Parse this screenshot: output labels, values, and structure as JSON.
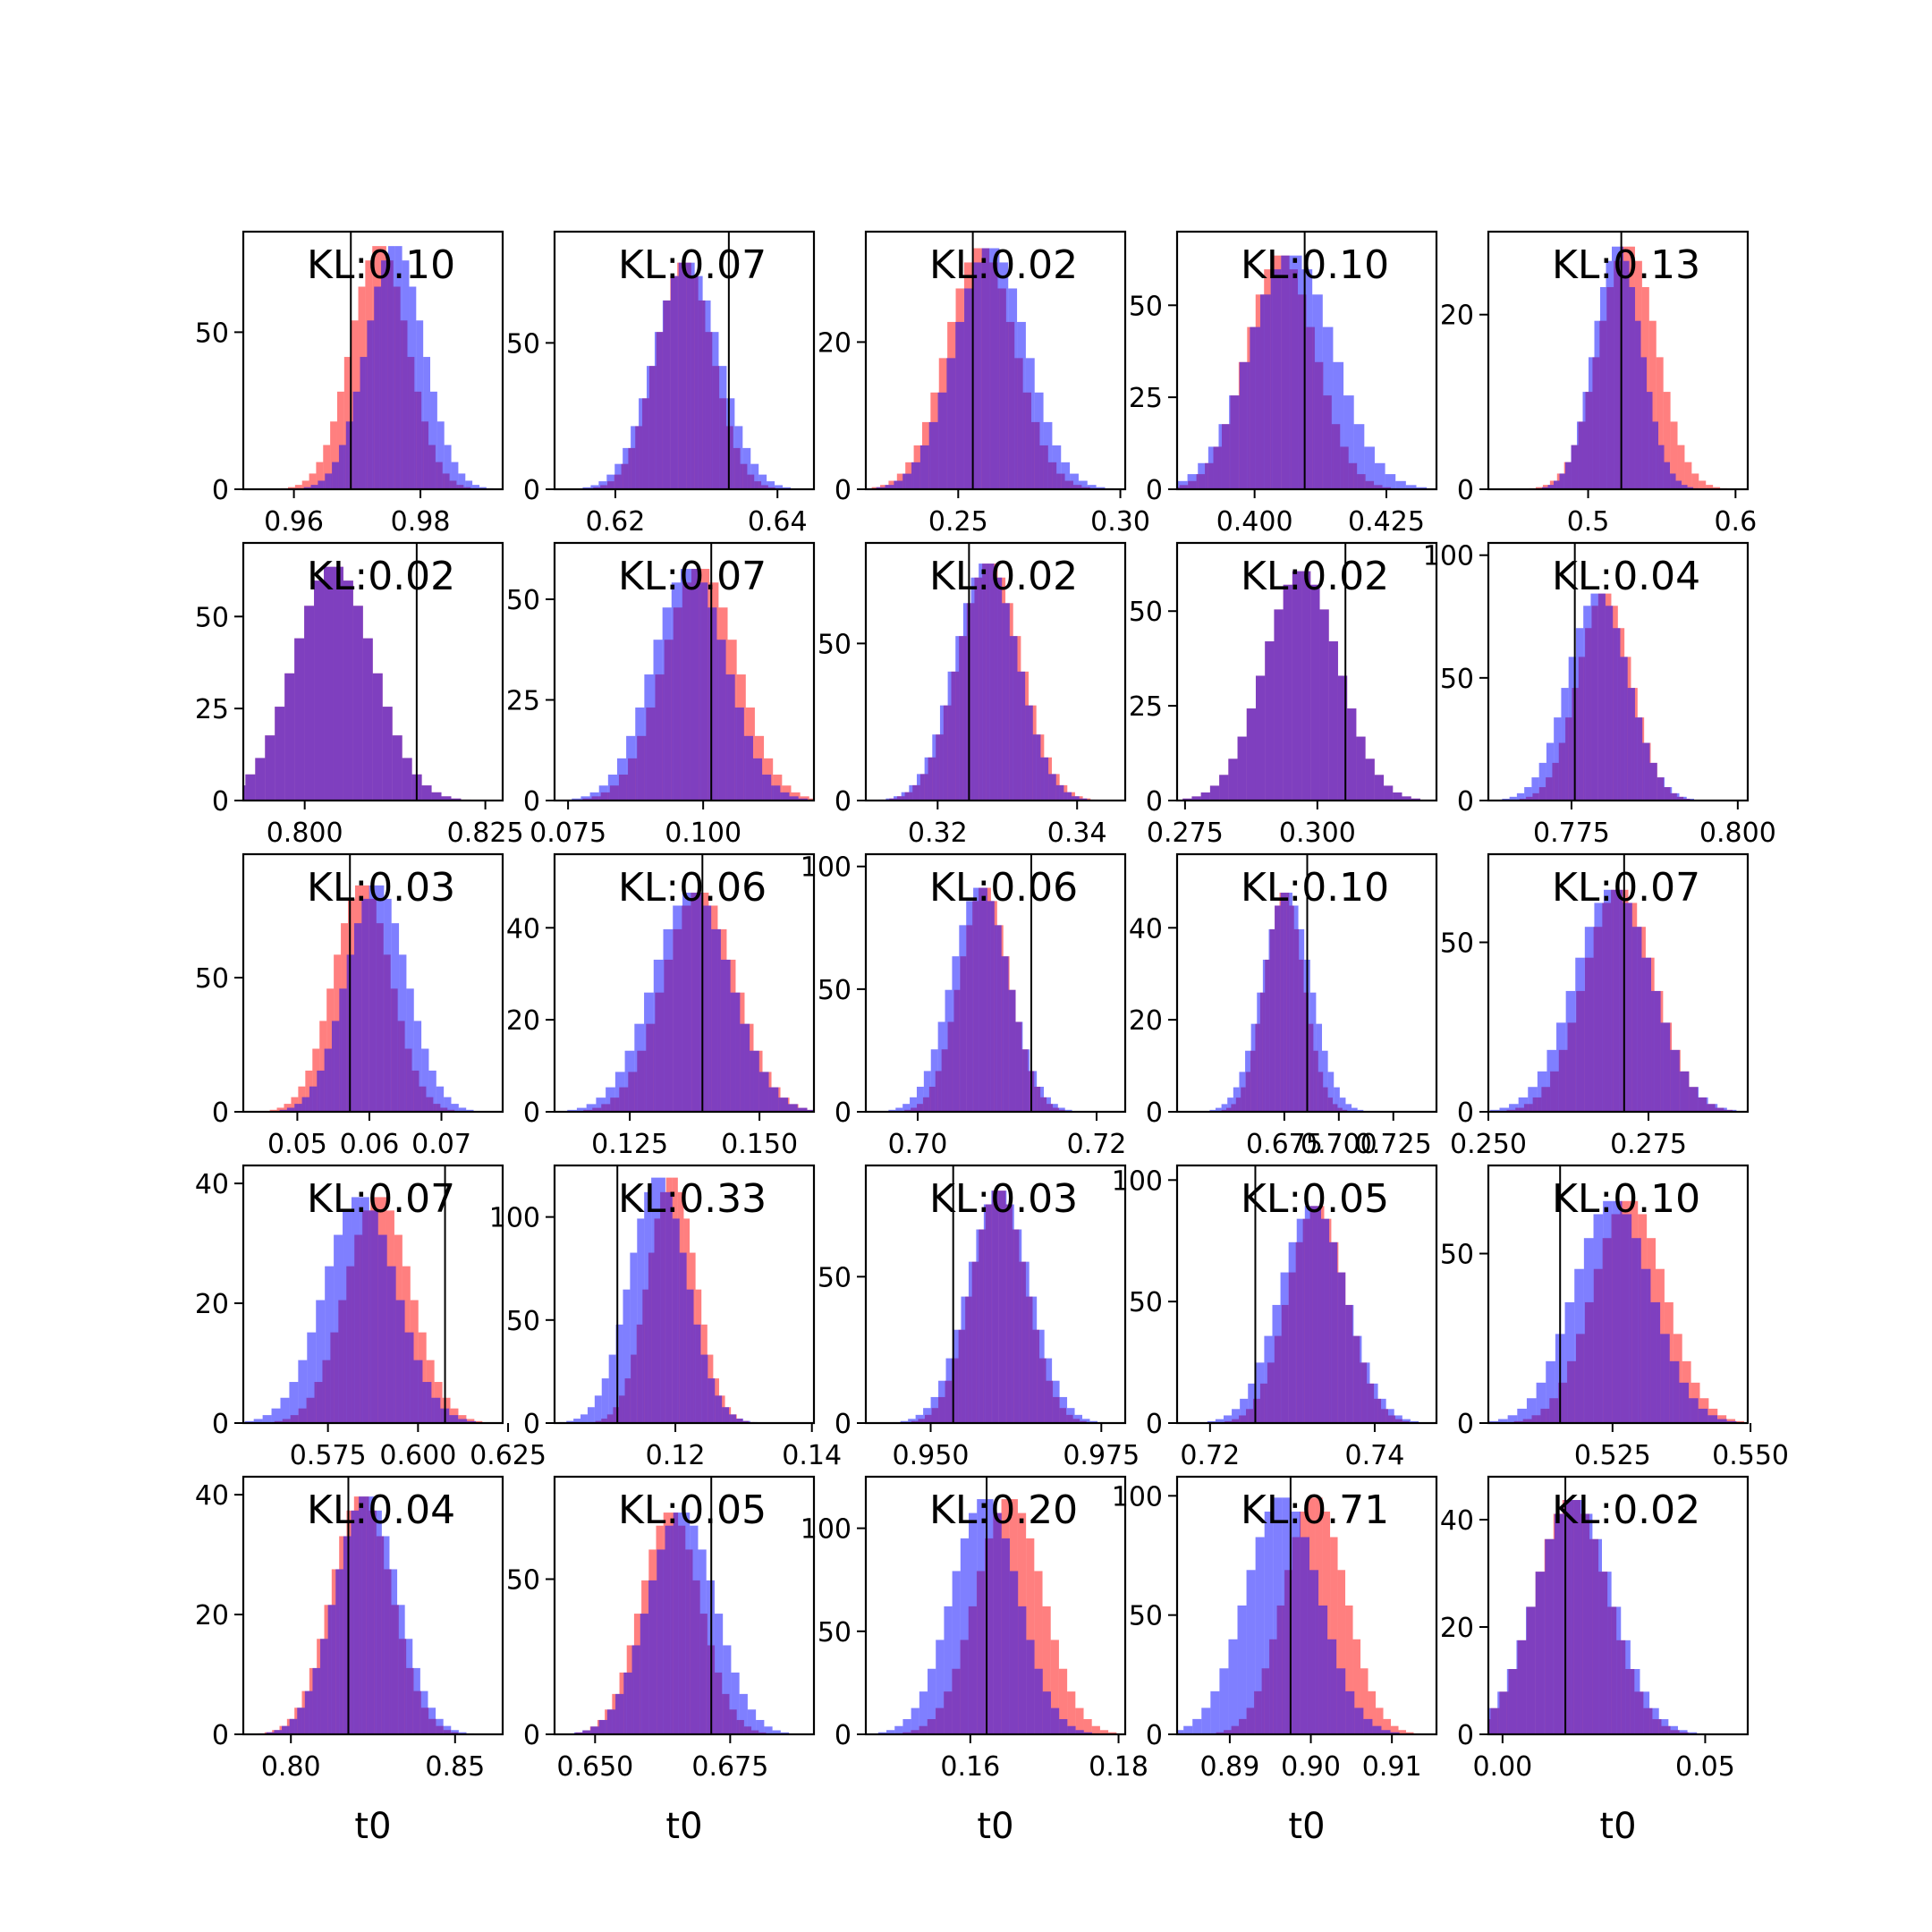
{
  "chart_data": [
    {
      "type": "bar",
      "kl_text": "KL:0.10",
      "xlabel": "",
      "mu_red": 0.9735,
      "sd_red": 0.0045,
      "mu_blue": 0.976,
      "sd_blue": 0.0045,
      "peak": 78,
      "xlim": [
        0.952,
        0.993
      ],
      "ylim": [
        0,
        82
      ],
      "xticks": [
        0.96,
        0.98
      ],
      "xtick_labels": [
        "0.96",
        "0.98"
      ],
      "yticks": [
        0,
        50
      ],
      "ytick_labels": [
        "0",
        "50"
      ],
      "vline": 0.969
    },
    {
      "type": "bar",
      "kl_text": "KL:0.07",
      "xlabel": "",
      "mu_red": 0.6285,
      "sd_red": 0.0035,
      "mu_blue": 0.6288,
      "sd_blue": 0.004,
      "peak": 78,
      "xlim": [
        0.6125,
        0.6445
      ],
      "ylim": [
        0,
        88
      ],
      "xticks": [
        0.62,
        0.64
      ],
      "xtick_labels": [
        "0.62",
        "0.64"
      ],
      "yticks": [
        0,
        50
      ],
      "ytick_labels": [
        "0",
        "50"
      ],
      "vline": 0.634
    },
    {
      "type": "bar",
      "kl_text": "KL:0.02",
      "xlabel": "",
      "mu_red": 0.257,
      "sd_red": 0.0105,
      "mu_blue": 0.26,
      "sd_blue": 0.011,
      "peak": 33,
      "xlim": [
        0.2215,
        0.3015
      ],
      "ylim": [
        0,
        35
      ],
      "xticks": [
        0.25,
        0.3
      ],
      "xtick_labels": [
        "0.25",
        "0.30"
      ],
      "yticks": [
        0,
        20
      ],
      "ytick_labels": [
        "0",
        "20"
      ],
      "vline": 0.2545
    },
    {
      "type": "bar",
      "kl_text": "KL:0.10",
      "xlabel": "",
      "mu_red": 0.405,
      "sd_red": 0.0065,
      "mu_blue": 0.407,
      "sd_blue": 0.008,
      "peak": 64,
      "xlim": [
        0.3853,
        0.4345
      ],
      "ylim": [
        0,
        70
      ],
      "xticks": [
        0.4,
        0.425
      ],
      "xtick_labels": [
        "0.400",
        "0.425"
      ],
      "yticks": [
        0,
        25,
        50
      ],
      "ytick_labels": [
        "0",
        "25",
        "50"
      ],
      "vline": 0.4095
    },
    {
      "type": "bar",
      "kl_text": "KL:0.13",
      "xlabel": "",
      "mu_red": 0.527,
      "sd_red": 0.0195,
      "mu_blue": 0.52,
      "sd_blue": 0.016,
      "peak": 28,
      "xlim": [
        0.4323,
        0.6083
      ],
      "ylim": [
        0,
        29.5
      ],
      "xticks": [
        0.5,
        0.6
      ],
      "xtick_labels": [
        "0.5",
        "0.6"
      ],
      "yticks": [
        0,
        20
      ],
      "ytick_labels": [
        "0",
        "20"
      ],
      "vline": 0.5225
    },
    {
      "type": "bar",
      "kl_text": "KL:0.02",
      "xlabel": "",
      "mu_red": 0.804,
      "sd_red": 0.0055,
      "mu_blue": 0.804,
      "sd_blue": 0.0055,
      "peak": 64,
      "xlim": [
        0.7915,
        0.8274
      ],
      "ylim": [
        0,
        70
      ],
      "xticks": [
        0.8,
        0.825
      ],
      "xtick_labels": [
        "0.800",
        "0.825"
      ],
      "yticks": [
        0,
        25,
        50
      ],
      "ytick_labels": [
        "0",
        "25",
        "50"
      ],
      "vline": 0.8155
    },
    {
      "type": "bar",
      "kl_text": "KL:0.07",
      "xlabel": "",
      "mu_red": 0.0995,
      "sd_red": 0.0068,
      "mu_blue": 0.0975,
      "sd_blue": 0.0068,
      "peak": 58,
      "xlim": [
        0.0725,
        0.1205
      ],
      "ylim": [
        0,
        64
      ],
      "xticks": [
        0.075,
        0.1
      ],
      "xtick_labels": [
        "0.075",
        "0.100"
      ],
      "yticks": [
        0,
        25,
        50
      ],
      "ytick_labels": [
        "0",
        "25",
        "50"
      ],
      "vline": 0.1015
    },
    {
      "type": "bar",
      "kl_text": "KL:0.02",
      "xlabel": "",
      "mu_red": 0.3275,
      "sd_red": 0.0045,
      "mu_blue": 0.327,
      "sd_blue": 0.0045,
      "peak": 76,
      "xlim": [
        0.3097,
        0.3469
      ],
      "ylim": [
        0,
        82
      ],
      "xticks": [
        0.32,
        0.34
      ],
      "xtick_labels": [
        "0.32",
        "0.34"
      ],
      "yticks": [
        0,
        50
      ],
      "ytick_labels": [
        "0",
        "50"
      ],
      "vline": 0.3245
    },
    {
      "type": "bar",
      "kl_text": "KL:0.02",
      "xlabel": "",
      "mu_red": 0.297,
      "sd_red": 0.007,
      "mu_blue": 0.297,
      "sd_blue": 0.007,
      "peak": 61,
      "xlim": [
        0.2735,
        0.3225
      ],
      "ylim": [
        0,
        68
      ],
      "xticks": [
        0.275,
        0.3
      ],
      "xtick_labels": [
        "0.275",
        "0.300"
      ],
      "yticks": [
        0,
        25,
        50
      ],
      "ytick_labels": [
        "0",
        "25",
        "50"
      ],
      "vline": 0.3053
    },
    {
      "type": "bar",
      "kl_text": "KL:0.04",
      "xlabel": "",
      "mu_red": 0.78,
      "sd_red": 0.004,
      "mu_blue": 0.779,
      "sd_blue": 0.0045,
      "peak": 85,
      "xlim": [
        0.7625,
        0.8015
      ],
      "ylim": [
        0,
        105
      ],
      "xticks": [
        0.775,
        0.8
      ],
      "xtick_labels": [
        "0.775",
        "0.800"
      ],
      "yticks": [
        0,
        50,
        100
      ],
      "ytick_labels": [
        "0",
        "50",
        "100"
      ],
      "vline": 0.7755
    },
    {
      "type": "bar",
      "kl_text": "KL:0.03",
      "xlabel": "",
      "mu_red": 0.059,
      "sd_red": 0.004,
      "mu_blue": 0.061,
      "sd_blue": 0.0042,
      "peak": 85,
      "xlim": [
        0.0425,
        0.0785
      ],
      "ylim": [
        0,
        96
      ],
      "xticks": [
        0.05,
        0.06,
        0.07
      ],
      "xtick_labels": [
        "0.05",
        "0.06",
        "0.07"
      ],
      "yticks": [
        0,
        50
      ],
      "ytick_labels": [
        "0",
        "50"
      ],
      "vline": 0.0573
    },
    {
      "type": "bar",
      "kl_text": "KL:0.06",
      "xlabel": "",
      "mu_red": 0.1385,
      "sd_red": 0.007,
      "mu_blue": 0.137,
      "sd_blue": 0.0075,
      "peak": 48,
      "xlim": [
        0.1105,
        0.1605
      ],
      "ylim": [
        0,
        56
      ],
      "xticks": [
        0.125,
        0.15
      ],
      "xtick_labels": [
        "0.125",
        "0.150"
      ],
      "yticks": [
        0,
        20,
        40
      ],
      "ytick_labels": [
        "0",
        "20",
        "40"
      ],
      "vline": 0.139
    },
    {
      "type": "bar",
      "kl_text": "KL:0.06",
      "xlabel": "",
      "mu_red": 0.7075,
      "sd_red": 0.0028,
      "mu_blue": 0.707,
      "sd_blue": 0.0032,
      "peak": 92,
      "xlim": [
        0.6942,
        0.7232
      ],
      "ylim": [
        0,
        105
      ],
      "xticks": [
        0.7,
        0.72
      ],
      "xtick_labels": [
        "0.70",
        "0.72"
      ],
      "yticks": [
        0,
        50,
        100
      ],
      "ytick_labels": [
        "0",
        "50",
        "100"
      ],
      "vline": 0.7127
    },
    {
      "type": "bar",
      "kl_text": "KL:0.10",
      "xlabel": "",
      "mu_red": 0.675,
      "sd_red": 0.009,
      "mu_blue": 0.676,
      "sd_blue": 0.011,
      "peak": 48,
      "xlim": [
        0.6258,
        0.7448
      ],
      "ylim": [
        0,
        56
      ],
      "xticks": [
        0.675,
        0.7,
        0.725
      ],
      "xtick_labels": [
        "0.675",
        "0.700",
        "0.725"
      ],
      "yticks": [
        0,
        20,
        40
      ],
      "ytick_labels": [
        "0",
        "20",
        "40"
      ],
      "vline": 0.6855
    },
    {
      "type": "bar",
      "kl_text": "KL:0.07",
      "xlabel": "",
      "mu_red": 0.2705,
      "sd_red": 0.0055,
      "mu_blue": 0.2695,
      "sd_blue": 0.006,
      "peak": 66,
      "xlim": [
        0.25,
        0.2905
      ],
      "ylim": [
        0,
        76
      ],
      "xticks": [
        0.25,
        0.275
      ],
      "xtick_labels": [
        "0.250",
        "0.275"
      ],
      "yticks": [
        0,
        50
      ],
      "ytick_labels": [
        "0",
        "50"
      ],
      "vline": 0.2712
    },
    {
      "type": "bar",
      "kl_text": "KL:0.07",
      "xlabel": "",
      "mu_red": 0.589,
      "sd_red": 0.009,
      "mu_blue": 0.584,
      "sd_blue": 0.01,
      "peak": 38,
      "xlim": [
        0.5515,
        0.6235
      ],
      "ylim": [
        0,
        43
      ],
      "xticks": [
        0.575,
        0.6,
        0.625
      ],
      "xtick_labels": [
        "0.575",
        "0.600",
        "0.625"
      ],
      "yticks": [
        0,
        20,
        40
      ],
      "ytick_labels": [
        "0",
        "20",
        "40"
      ],
      "vline": 0.6075
    },
    {
      "type": "bar",
      "kl_text": "KL:0.33",
      "xlabel": "",
      "mu_red": 0.1195,
      "sd_red": 0.0035,
      "mu_blue": 0.1175,
      "sd_blue": 0.0042,
      "peak": 120,
      "xlim": [
        0.1023,
        0.1403
      ],
      "ylim": [
        0,
        125
      ],
      "xticks": [
        0.12,
        0.14
      ],
      "xtick_labels": [
        "0.12",
        "0.14"
      ],
      "yticks": [
        0,
        50,
        100
      ],
      "ytick_labels": [
        "0",
        "50",
        "100"
      ],
      "vline": 0.1115
    },
    {
      "type": "bar",
      "kl_text": "KL:0.03",
      "xlabel": "",
      "mu_red": 0.96,
      "sd_red": 0.004,
      "mu_blue": 0.96,
      "sd_blue": 0.0045,
      "peak": 80,
      "xlim": [
        0.9405,
        0.9785
      ],
      "ylim": [
        0,
        88
      ],
      "xticks": [
        0.95,
        0.975
      ],
      "xtick_labels": [
        "0.950",
        "0.975"
      ],
      "yticks": [
        0,
        50
      ],
      "ytick_labels": [
        "0",
        "50"
      ],
      "vline": 0.9533
    },
    {
      "type": "bar",
      "kl_text": "KL:0.05",
      "xlabel": "",
      "mu_red": 0.733,
      "sd_red": 0.0035,
      "mu_blue": 0.7325,
      "sd_blue": 0.004,
      "peak": 90,
      "xlim": [
        0.716,
        0.7475
      ],
      "ylim": [
        0,
        106
      ],
      "xticks": [
        0.72,
        0.74
      ],
      "xtick_labels": [
        "0.72",
        "0.74"
      ],
      "yticks": [
        0,
        50,
        100
      ],
      "ytick_labels": [
        "0",
        "50",
        "100"
      ],
      "vline": 0.7255
    },
    {
      "type": "bar",
      "kl_text": "KL:0.10",
      "xlabel": "",
      "mu_red": 0.528,
      "sd_red": 0.0065,
      "mu_blue": 0.525,
      "sd_blue": 0.007,
      "peak": 66,
      "xlim": [
        0.5025,
        0.5495
      ],
      "ylim": [
        0,
        76
      ],
      "xticks": [
        0.525,
        0.55
      ],
      "xtick_labels": [
        "0.525",
        "0.550"
      ],
      "yticks": [
        0,
        50
      ],
      "ytick_labels": [
        "0",
        "50"
      ],
      "vline": 0.5155
    },
    {
      "type": "bar",
      "kl_text": "KL:0.04",
      "xlabel": "t0",
      "mu_red": 0.8215,
      "sd_red": 0.0092,
      "mu_blue": 0.823,
      "sd_blue": 0.0095,
      "peak": 40,
      "xlim": [
        0.7855,
        0.8645
      ],
      "ylim": [
        0,
        43
      ],
      "xticks": [
        0.8,
        0.85
      ],
      "xtick_labels": [
        "0.80",
        "0.85"
      ],
      "yticks": [
        0,
        20,
        40
      ],
      "ytick_labels": [
        "0",
        "20",
        "40"
      ],
      "vline": 0.8175
    },
    {
      "type": "bar",
      "kl_text": "KL:0.05",
      "xlabel": "t0",
      "mu_red": 0.664,
      "sd_red": 0.0055,
      "mu_blue": 0.666,
      "sd_blue": 0.0062,
      "peak": 72,
      "xlim": [
        0.6425,
        0.6905
      ],
      "ylim": [
        0,
        83
      ],
      "xticks": [
        0.65,
        0.675
      ],
      "xtick_labels": [
        "0.650",
        "0.675"
      ],
      "yticks": [
        0,
        50
      ],
      "ytick_labels": [
        "0",
        "50"
      ],
      "vline": 0.6715
    },
    {
      "type": "bar",
      "kl_text": "KL:0.20",
      "xlabel": "t0",
      "mu_red": 0.1653,
      "sd_red": 0.0045,
      "mu_blue": 0.162,
      "sd_blue": 0.0045,
      "peak": 115,
      "xlim": [
        0.1459,
        0.1809
      ],
      "ylim": [
        0,
        125
      ],
      "xticks": [
        0.16,
        0.18
      ],
      "xtick_labels": [
        "0.16",
        "0.18"
      ],
      "yticks": [
        0,
        50,
        100
      ],
      "ytick_labels": [
        "0",
        "50",
        "100"
      ],
      "vline": 0.1622
    },
    {
      "type": "bar",
      "kl_text": "KL:0.71",
      "xlabel": "t0",
      "mu_red": 0.9005,
      "sd_red": 0.0038,
      "mu_blue": 0.8965,
      "sd_blue": 0.0045,
      "peak": 100,
      "xlim": [
        0.8835,
        0.9155
      ],
      "ylim": [
        0,
        108
      ],
      "xticks": [
        0.89,
        0.9,
        0.91
      ],
      "xtick_labels": [
        "0.89",
        "0.90",
        "0.91"
      ],
      "yticks": [
        0,
        50,
        100
      ],
      "ytick_labels": [
        "0",
        "50",
        "100"
      ],
      "vline": 0.8975
    },
    {
      "type": "bar",
      "kl_text": "KL:0.02",
      "xlabel": "t0",
      "mu_red": 0.017,
      "sd_red": 0.009,
      "mu_blue": 0.0175,
      "sd_blue": 0.0095,
      "peak": 44,
      "xlim": [
        -0.0035,
        0.0605
      ],
      "ylim": [
        0,
        48
      ],
      "xticks": [
        0,
        0.05
      ],
      "xtick_labels": [
        "0.00",
        "0.05"
      ],
      "yticks": [
        0,
        20,
        40
      ],
      "ytick_labels": [
        "0",
        "20",
        "40"
      ],
      "vline": 0.0155
    }
  ],
  "colors": {
    "red": "#ff0000",
    "blue": "#0000ff",
    "alpha": 0.5
  }
}
